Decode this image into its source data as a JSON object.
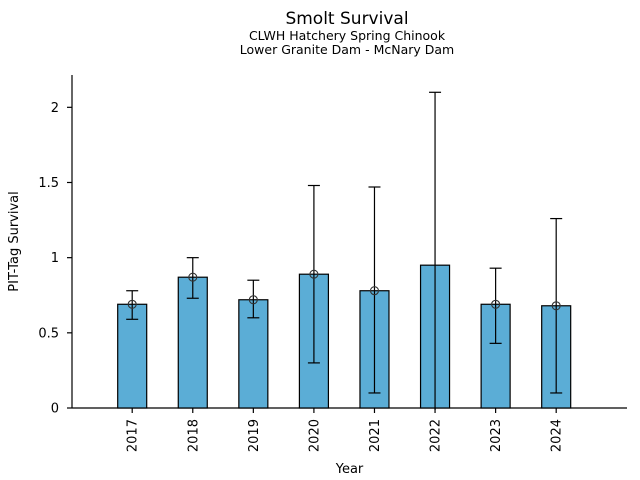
{
  "chart_data": {
    "type": "bar",
    "title": "Smolt Survival",
    "subtitle1": "CLWH Hatchery Spring Chinook",
    "subtitle2": "Lower Granite Dam - McNary Dam",
    "xlabel": "Year",
    "ylabel": "PIT-Tag Survival",
    "categories": [
      "2017",
      "2018",
      "2019",
      "2020",
      "2021",
      "2022",
      "2023",
      "2024"
    ],
    "values": [
      0.69,
      0.87,
      0.72,
      0.89,
      0.78,
      0.95,
      0.69,
      0.68
    ],
    "error_low": [
      0.59,
      0.73,
      0.6,
      0.3,
      0.1,
      0.0,
      0.43,
      0.1
    ],
    "error_high": [
      0.78,
      1.0,
      0.85,
      1.48,
      1.47,
      2.1,
      0.93,
      1.26
    ],
    "marker_visible": [
      true,
      true,
      true,
      true,
      true,
      false,
      true,
      true
    ],
    "yticks": [
      0,
      0.5,
      1,
      1.5,
      2
    ],
    "ylim": [
      0,
      2.215
    ],
    "xtick_rotation": 90,
    "grid": false,
    "legend": "none",
    "bar_color": "#5BADD6",
    "bar_edge_color": "#000000",
    "errorbar_color": "#000000",
    "marker_color": "#333333",
    "axis_color": "#000000"
  }
}
